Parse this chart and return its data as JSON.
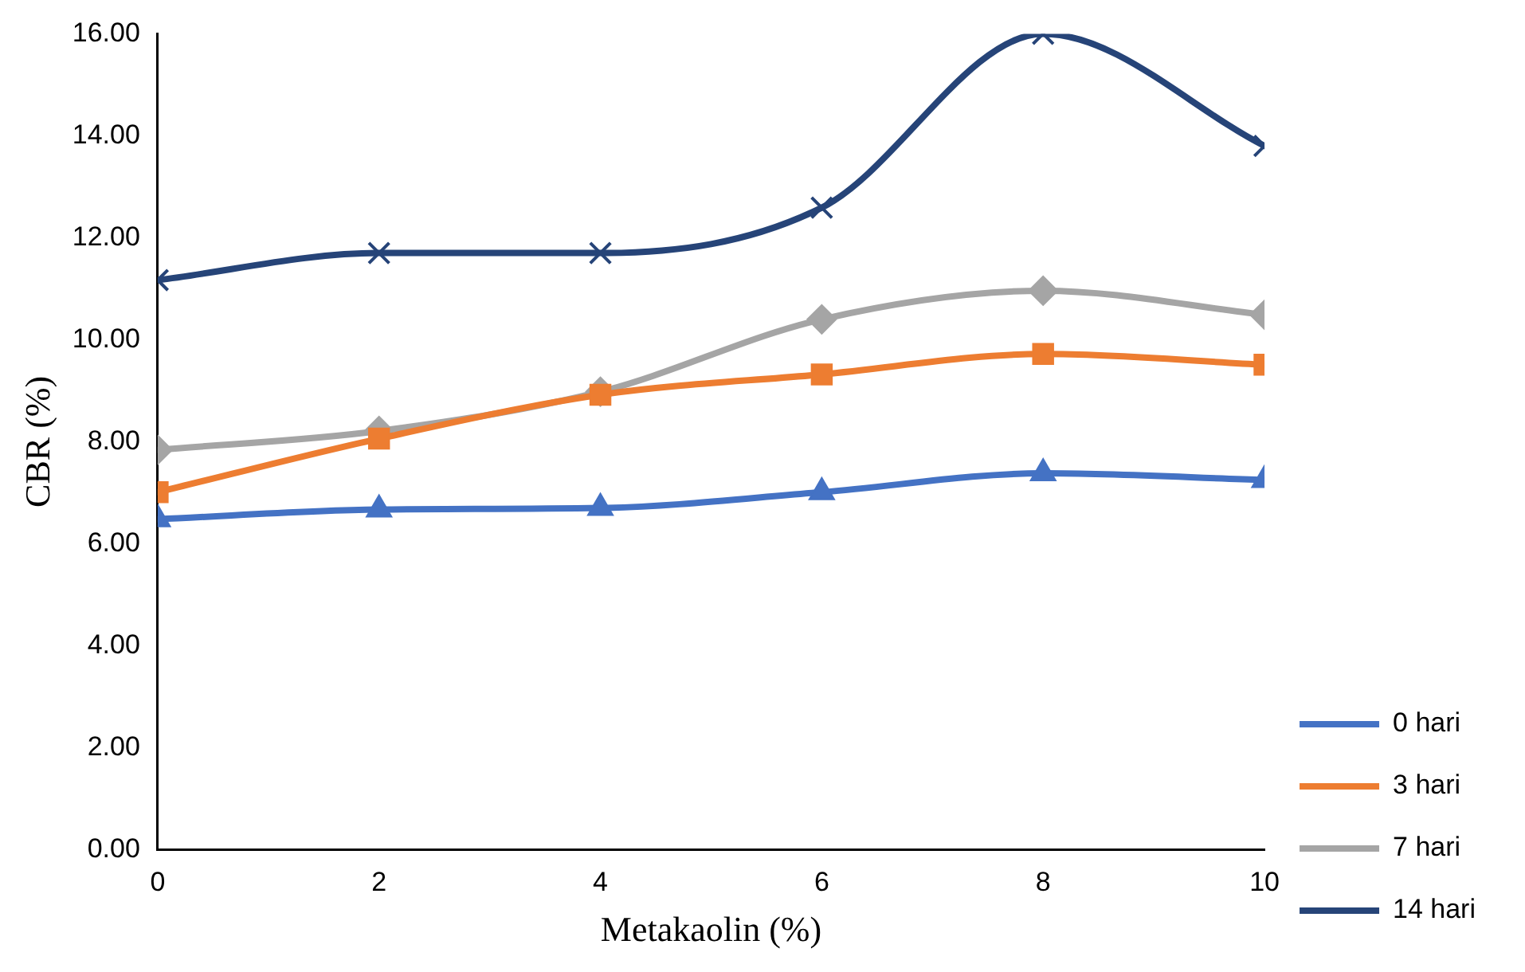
{
  "chart_data": {
    "type": "line",
    "xlabel": "Metakaolin (%)",
    "ylabel": "CBR (%)",
    "x": [
      0,
      2,
      4,
      6,
      8,
      10
    ],
    "xlim": [
      0,
      10
    ],
    "xticks": [
      0,
      2,
      4,
      6,
      8,
      10
    ],
    "ylim": [
      0,
      16
    ],
    "yticks": [
      {
        "value": 0,
        "label": "0.00"
      },
      {
        "value": 2,
        "label": "2.00"
      },
      {
        "value": 4,
        "label": "4.00"
      },
      {
        "value": 6,
        "label": "6.00"
      },
      {
        "value": 8,
        "label": "8.00"
      },
      {
        "value": 10,
        "label": "10.00"
      },
      {
        "value": 12,
        "label": "12.00"
      },
      {
        "value": 14,
        "label": "14.00"
      },
      {
        "value": 16,
        "label": "16.00"
      }
    ],
    "grid": false,
    "legend": "bottom right",
    "line_style": "solid",
    "series": [
      {
        "name": "0 hari",
        "color": "#4472c4",
        "marker": "triangle",
        "values": [
          6.48,
          6.67,
          6.7,
          7.01,
          7.38,
          7.25
        ]
      },
      {
        "name": "3 hari",
        "color": "#ed7d31",
        "marker": "square",
        "values": [
          7.01,
          8.06,
          8.92,
          9.32,
          9.72,
          9.51
        ]
      },
      {
        "name": "7 hari",
        "color": "#a5a5a5",
        "marker": "diamond",
        "values": [
          7.84,
          8.21,
          8.98,
          10.4,
          10.96,
          10.49
        ]
      },
      {
        "name": "14 hari",
        "color": "#264478",
        "marker": "cross",
        "values": [
          11.17,
          11.7,
          11.7,
          12.59,
          16.0,
          13.8
        ]
      }
    ]
  }
}
